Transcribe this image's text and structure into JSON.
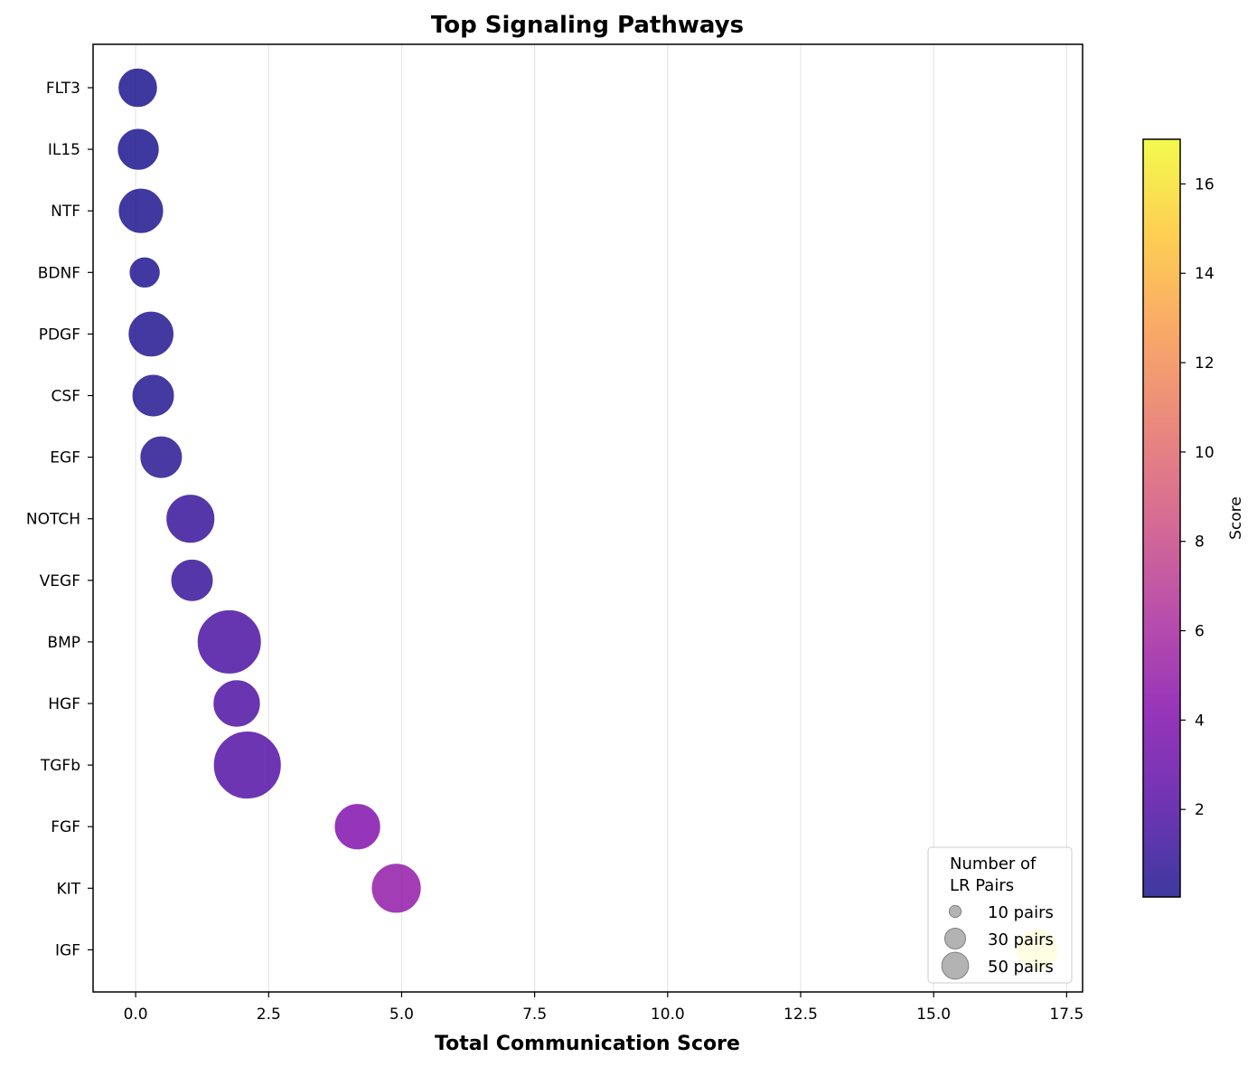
{
  "chart_data": {
    "type": "scatter",
    "title": "Top Signaling Pathways",
    "xlabel": "Total Communication Score",
    "ylabel": "",
    "xlim": [
      -0.8,
      17.8
    ],
    "xticks": [
      0.0,
      2.5,
      5.0,
      7.5,
      10.0,
      12.5,
      15.0,
      17.5
    ],
    "xtick_labels": [
      "0.0",
      "2.5",
      "5.0",
      "7.5",
      "10.0",
      "12.5",
      "15.0",
      "17.5"
    ],
    "grid": "vertical",
    "categories": [
      "FLT3",
      "IL15",
      "NTF",
      "BDNF",
      "PDGF",
      "CSF",
      "EGF",
      "NOTCH",
      "VEGF",
      "BMP",
      "HGF",
      "TGFb",
      "FGF",
      "KIT",
      "IGF"
    ],
    "points": [
      {
        "pathway": "FLT3",
        "score": 0.04,
        "lr_pairs": 32
      },
      {
        "pathway": "IL15",
        "score": 0.05,
        "lr_pairs": 36
      },
      {
        "pathway": "NTF",
        "score": 0.1,
        "lr_pairs": 42
      },
      {
        "pathway": "BDNF",
        "score": 0.17,
        "lr_pairs": 20
      },
      {
        "pathway": "PDGF",
        "score": 0.29,
        "lr_pairs": 43
      },
      {
        "pathway": "CSF",
        "score": 0.33,
        "lr_pairs": 37
      },
      {
        "pathway": "EGF",
        "score": 0.48,
        "lr_pairs": 37
      },
      {
        "pathway": "NOTCH",
        "score": 1.03,
        "lr_pairs": 49
      },
      {
        "pathway": "VEGF",
        "score": 1.06,
        "lr_pairs": 37
      },
      {
        "pathway": "BMP",
        "score": 1.76,
        "lr_pairs": 84
      },
      {
        "pathway": "HGF",
        "score": 1.9,
        "lr_pairs": 46
      },
      {
        "pathway": "TGFb",
        "score": 2.1,
        "lr_pairs": 94
      },
      {
        "pathway": "FGF",
        "score": 4.17,
        "lr_pairs": 44
      },
      {
        "pathway": "KIT",
        "score": 4.9,
        "lr_pairs": 51
      },
      {
        "pathway": "IGF",
        "score": 16.95,
        "lr_pairs": 36
      }
    ],
    "colormap": "plasma",
    "colorbar": {
      "label": "Score",
      "range": [
        0.04,
        17.0
      ],
      "ticks": [
        2,
        4,
        6,
        8,
        10,
        12,
        14,
        16
      ],
      "tick_labels": [
        "2",
        "4",
        "6",
        "8",
        "10",
        "12",
        "14",
        "16"
      ]
    },
    "legend": {
      "position": "lower-right",
      "title_lines": [
        "Number of",
        "LR Pairs"
      ],
      "entries": [
        {
          "label": "10 pairs",
          "pairs": 10
        },
        {
          "label": "30 pairs",
          "pairs": 30
        },
        {
          "label": "50 pairs",
          "pairs": 50
        }
      ],
      "marker_color": "#808080"
    },
    "colors": {
      "marker_edge": "#ffffff",
      "grid": "#e6e6e6",
      "axis": "#000000"
    }
  }
}
